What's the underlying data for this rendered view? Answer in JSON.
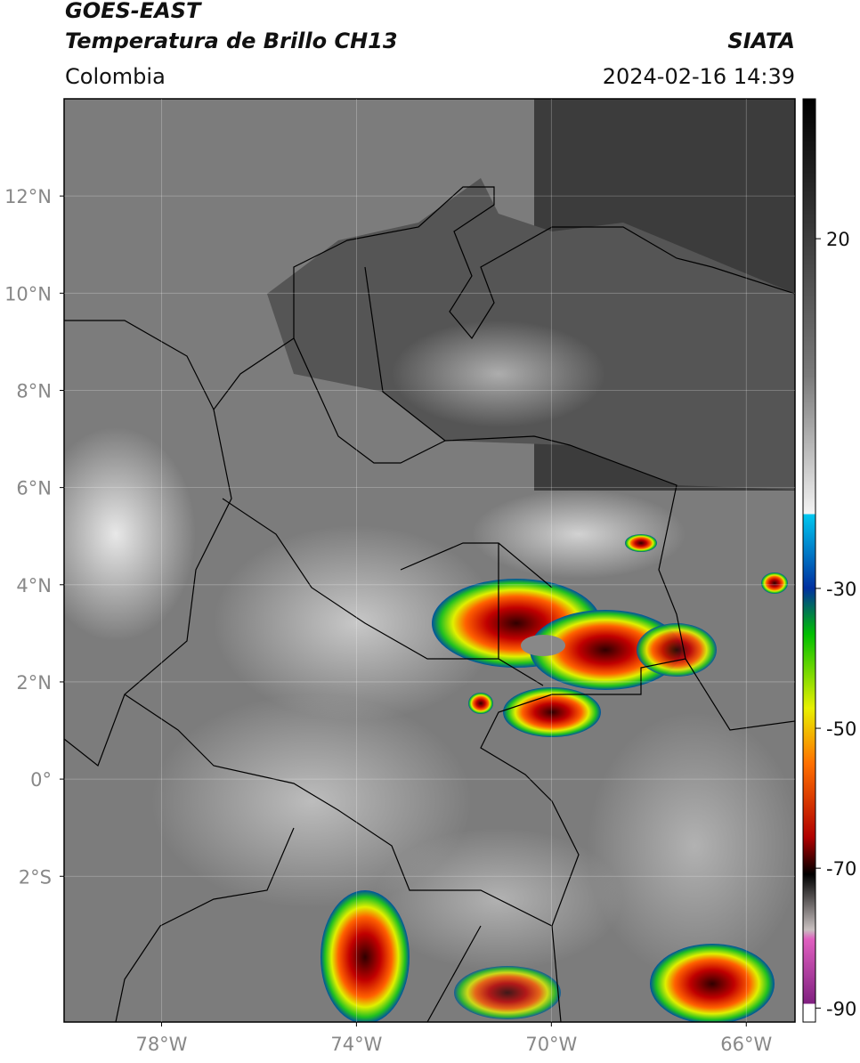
{
  "header": {
    "title": "GOES-EAST",
    "subtitle": "Temperatura de Brillo CH13",
    "region": "Colombia",
    "source": "SIATA",
    "datetime": "2024-02-16 14:39"
  },
  "map": {
    "xlim": [
      -80,
      -65
    ],
    "ylim": [
      -5,
      14
    ],
    "xticks": [
      {
        "value": -78,
        "label": "78°W"
      },
      {
        "value": -74,
        "label": "74°W"
      },
      {
        "value": -70,
        "label": "70°W"
      },
      {
        "value": -66,
        "label": "66°W"
      }
    ],
    "yticks": [
      {
        "value": 12,
        "label": "12°N"
      },
      {
        "value": 10,
        "label": "10°N"
      },
      {
        "value": 8,
        "label": "8°N"
      },
      {
        "value": 6,
        "label": "6°N"
      },
      {
        "value": 4,
        "label": "4°N"
      },
      {
        "value": 2,
        "label": "2°N"
      },
      {
        "value": 0,
        "label": "0°"
      },
      {
        "value": -2,
        "label": "2°S"
      }
    ],
    "grid": true
  },
  "colorbar": {
    "lim": [
      -92,
      40
    ],
    "ticks": [
      20,
      -30,
      -50,
      -70,
      -90
    ]
  }
}
